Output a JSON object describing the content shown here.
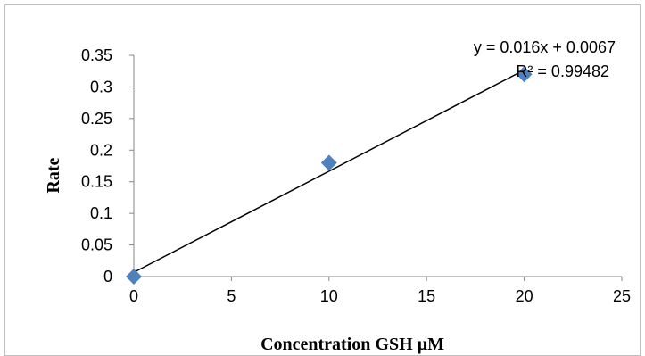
{
  "chart_data": {
    "type": "scatter",
    "title": "",
    "xlabel": "Concentration GSH µM",
    "ylabel": "Rate",
    "xlim": [
      0,
      25
    ],
    "ylim": [
      0,
      0.35
    ],
    "x_ticks": [
      "0",
      "5",
      "10",
      "15",
      "20",
      "25"
    ],
    "y_ticks": [
      "0",
      "0.05",
      "0.1",
      "0.15",
      "0.2",
      "0.25",
      "0.3",
      "0.35"
    ],
    "grid": false,
    "legend": "none",
    "series": [
      {
        "marker": "diamond",
        "color": "#4f81bd",
        "points": [
          {
            "x": 0,
            "y": 0
          },
          {
            "x": 10,
            "y": 0.18
          },
          {
            "x": 20,
            "y": 0.32
          }
        ]
      }
    ],
    "trendline": {
      "type": "linear",
      "slope": 0.016,
      "intercept": 0.0067,
      "x_range": [
        0,
        20
      ],
      "color": "#000000",
      "equation_label": "y = 0.016x + 0.0067",
      "r2_label": "R² = 0.99482"
    }
  }
}
